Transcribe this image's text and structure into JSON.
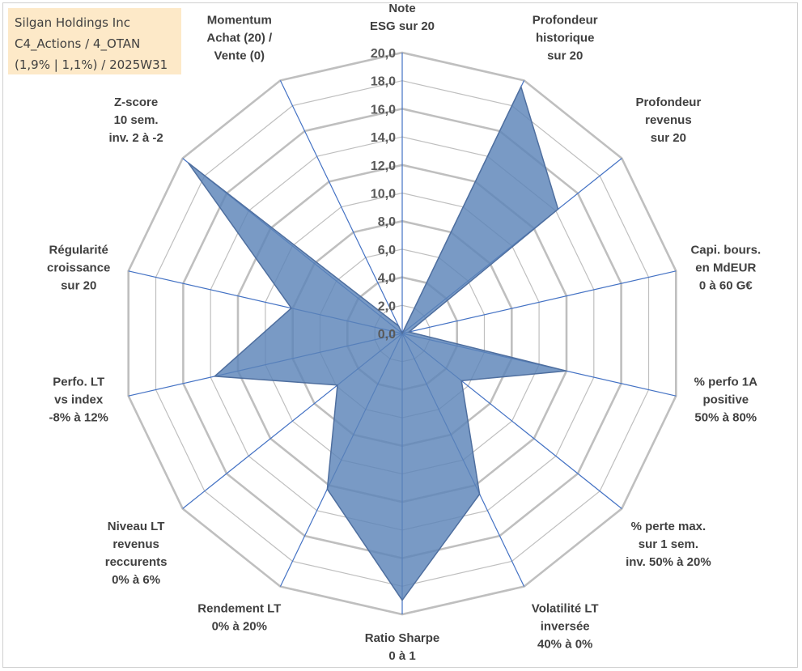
{
  "info_box": {
    "lines": [
      "Silgan Holdings Inc",
      "C4_Actions / 4_OTAN",
      "(1,9% | 1,1%) / 2025W31"
    ]
  },
  "colors": {
    "grid": "#bfbfbf",
    "spoke": "#4472c4",
    "fill": "#5b84b8",
    "outline": "#4f6f9f",
    "text": "#404040"
  },
  "chart_data": {
    "type": "radar",
    "title": "",
    "rlim": [
      0,
      20
    ],
    "grid": true,
    "ticks": [
      "0,0",
      "2,0",
      "4,0",
      "6,0",
      "8,0",
      "10,0",
      "12,0",
      "14,0",
      "16,0",
      "18,0",
      "20,0"
    ],
    "tick_values": [
      0,
      2,
      4,
      6,
      8,
      10,
      12,
      14,
      16,
      18,
      20
    ],
    "categories": [
      [
        "Note",
        "ESG sur 20"
      ],
      [
        "Profondeur",
        "historique",
        "sur 20"
      ],
      [
        "Profondeur",
        "revenus",
        "sur 20"
      ],
      [
        "Capi. bours.",
        "en MdEUR",
        "0 à 60 G€"
      ],
      [
        "% perfo 1A",
        "positive",
        "50% à 80%"
      ],
      [
        "% perte max.",
        "sur 1 sem.",
        "inv. 50% à 20%"
      ],
      [
        "Volatilité LT",
        "inversée",
        "40% à 0%"
      ],
      [
        "Ratio Sharpe",
        "0 à 1"
      ],
      [
        "Rendement LT",
        "0% à 20%"
      ],
      [
        "Niveau LT",
        "revenus",
        "reccurents",
        "0% à 6%"
      ],
      [
        "Perfo. LT",
        "vs index",
        "-8% à 12%"
      ],
      [
        "Régularité",
        "croissance",
        "sur 20"
      ],
      [
        "Z-score",
        "10 sem.",
        "inv. 2 à -2"
      ],
      [
        "Momentum",
        "Achat (20) /",
        "Vente (0)"
      ]
    ],
    "series": [
      {
        "values": [
          0.0,
          19.5,
          14.2,
          0.5,
          12.0,
          5.4,
          12.7,
          19.0,
          12.3,
          5.9,
          13.7,
          8.1,
          19.5,
          0.6
        ]
      }
    ]
  }
}
